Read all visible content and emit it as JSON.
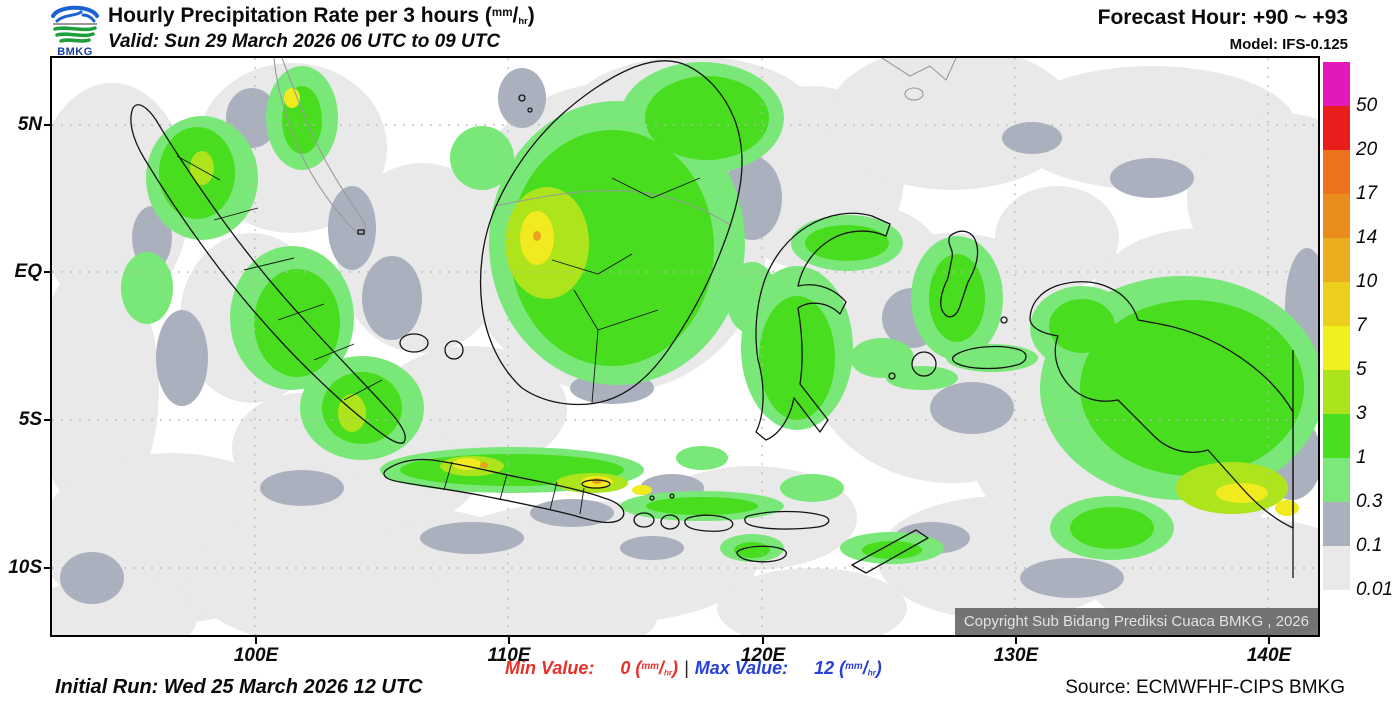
{
  "header": {
    "logo_text": "BMKG",
    "title": "Hourly Precipitation Rate per 3 hours ",
    "valid": "Valid: Sun 29 March 2026 06 UTC to 09 UTC",
    "forecast_hour": "Forecast Hour: +90 ~ +93",
    "model": "Model: IFS-0.125"
  },
  "unit": {
    "open": "(",
    "num": "mm",
    "slash": "/",
    "den": "hr",
    "close": ")"
  },
  "map": {
    "y_ticks": [
      "5N",
      "EQ",
      "5S",
      "10S"
    ],
    "x_ticks": [
      "100E",
      "110E",
      "120E",
      "130E",
      "140E"
    ],
    "copyright": "Copyright Sub Bidang Prediksi Cuaca BMKG , 2026"
  },
  "legend": {
    "labels": [
      "50",
      "20",
      "17",
      "14",
      "10",
      "7",
      "5",
      "3",
      "1",
      "0.3",
      "0.1",
      "0.01"
    ],
    "colors": [
      "#e318b8",
      "#ea1d1d",
      "#ec721d",
      "#eb8d1d",
      "#e9ad1d",
      "#edd01d",
      "#f0ee1c",
      "#ace41c",
      "#49df1e",
      "#7ce87c",
      "#abb0be",
      "#e9e9e9"
    ]
  },
  "footer": {
    "initial_run": "Initial Run: Wed 25 March 2026 12 UTC",
    "min_label": "Min Value:",
    "min_value": "0 ",
    "separator": "|",
    "max_label": "Max Value:",
    "max_value": "12 ",
    "source": "Source: ECMWFHF-CIPS BMKG"
  },
  "colors": {
    "precip_light": "#e9e9e9",
    "precip_gray": "#aab0bd",
    "precip_lgreen": "#79e879",
    "precip_green": "#49dd1f",
    "precip_ygreen": "#ade41c",
    "precip_yellow": "#f0ea1e",
    "min_color": "#e8302a",
    "max_color": "#2840d8"
  }
}
